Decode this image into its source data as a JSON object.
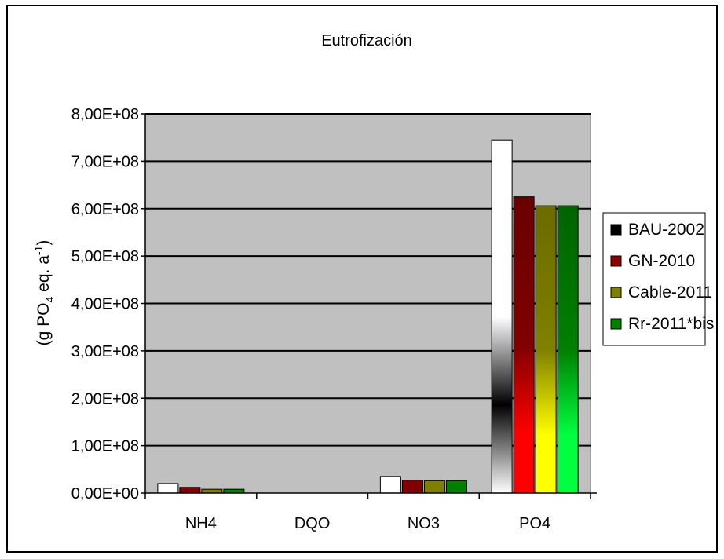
{
  "chart_data": {
    "type": "bar",
    "title": "Eutrofización",
    "ylabel_main": "(g PO",
    "ylabel_sub": "4",
    "ylabel_mid": " eq. a",
    "ylabel_sup": "-1",
    "ylabel_end": ")",
    "xlabel": "",
    "categories": [
      "NH4",
      "DQO",
      "NO3",
      "PO4"
    ],
    "ylim": [
      0,
      800000000
    ],
    "yticks": [
      0,
      100000000,
      200000000,
      300000000,
      400000000,
      500000000,
      600000000,
      700000000,
      800000000
    ],
    "ytick_labels": [
      "0,00E+00",
      "1,00E+08",
      "2,00E+08",
      "3,00E+08",
      "4,00E+08",
      "5,00E+08",
      "6,00E+08",
      "7,00E+08",
      "8,00E+08"
    ],
    "grid": true,
    "legend_position": "right",
    "plot_background": "#c0c0c0",
    "series": [
      {
        "name": "BAU-2002",
        "color": "#000000",
        "values": [
          20000000,
          0,
          35000000,
          745000000
        ]
      },
      {
        "name": "GN-2010",
        "color": "#8b0000",
        "values": [
          12000000,
          0,
          27000000,
          625000000
        ]
      },
      {
        "name": "Cable-2011",
        "color": "#808000",
        "values": [
          8000000,
          0,
          26000000,
          606000000
        ]
      },
      {
        "name": "Rr-2011*bis",
        "color": "#008000",
        "values": [
          8000000,
          0,
          26000000,
          606000000
        ]
      }
    ]
  }
}
